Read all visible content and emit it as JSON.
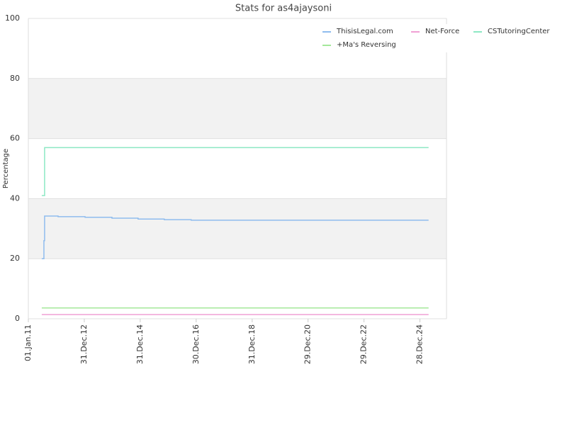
{
  "chart_data": {
    "type": "line",
    "title": "Stats for as4ajaysoni",
    "y_label": "Percentage",
    "step": true,
    "grid": true,
    "alternate_bands": true,
    "legend": "top-right",
    "xlim": [
      "2011-01-01",
      "2025-12-10"
    ],
    "xticks": [
      {
        "value": "2011-01-01",
        "label": "01.Jan.11"
      },
      {
        "value": "2012-12-31",
        "label": "31.Dec.12"
      },
      {
        "value": "2014-12-31",
        "label": "31.Dec.14"
      },
      {
        "value": "2016-12-30",
        "label": "30.Dec.16"
      },
      {
        "value": "2018-12-31",
        "label": "31.Dec.18"
      },
      {
        "value": "2020-12-29",
        "label": "29.Dec.20"
      },
      {
        "value": "2022-12-29",
        "label": "29.Dec.22"
      },
      {
        "value": "2024-12-28",
        "label": "28.Dec.24"
      }
    ],
    "ylim": [
      0,
      100
    ],
    "yticks": [
      0,
      20,
      40,
      60,
      80,
      100
    ],
    "series": [
      {
        "name": "ThisisLegal.com",
        "color": "#8fbcee",
        "x": [
          "2011-06-25",
          "2011-07-23",
          "2011-08-01",
          "2012-01-24",
          "2013-01-10",
          "2013-12-27",
          "2014-12-03",
          "2015-11-10",
          "2016-10-26",
          "2025-04-20"
        ],
        "values": [
          20,
          26,
          34.2,
          34,
          33.8,
          33.5,
          33.2,
          33,
          32.8,
          32.8
        ]
      },
      {
        "name": "Net-Force",
        "color": "#f0a0d4",
        "x": [
          "2011-06-25",
          "2025-04-20"
        ],
        "values": [
          1.4,
          1.4
        ]
      },
      {
        "name": "CSTutoringCenter",
        "color": "#8de8c4",
        "x": [
          "2011-06-25",
          "2011-08-01",
          "2025-04-20"
        ],
        "values": [
          41,
          57,
          57
        ]
      },
      {
        "name": "+Ma's Reversing",
        "color": "#a4e89a",
        "x": [
          "2011-06-25",
          "2025-04-20"
        ],
        "values": [
          3.6,
          3.6
        ]
      }
    ]
  }
}
